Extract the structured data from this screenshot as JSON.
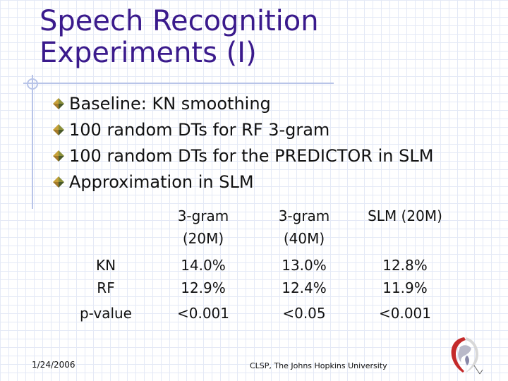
{
  "slide": {
    "title_line1": "Speech Recognition",
    "title_line2": "Experiments (I)",
    "bullets": [
      "Baseline: KN smoothing",
      "100 random DTs for RF 3-gram",
      "100 random DTs for the PREDICTOR in SLM",
      "Approximation in SLM"
    ],
    "table": {
      "headers": [
        [
          "",
          ""
        ],
        [
          "3-gram",
          "(20M)"
        ],
        [
          "3-gram",
          "(40M)"
        ],
        [
          "SLM (20M)",
          ""
        ]
      ],
      "rows": [
        [
          "KN",
          "14.0%",
          "13.0%",
          "12.8%"
        ],
        [
          "RF",
          "12.9%",
          "12.4%",
          "11.9%"
        ],
        [
          "p-value",
          "<0.001",
          "<0.05",
          "<0.001"
        ]
      ]
    },
    "footer": {
      "date": "1/24/2006",
      "org": "CLSP, The Johns Hopkins University"
    },
    "colors": {
      "title": "#3a1a8c",
      "bullet_top": "#8a8f3a",
      "bullet_left": "#c7a13a",
      "bullet_right": "#4a5a2a",
      "rule": "#b8c4e8"
    },
    "icons": {
      "bullet": "diamond-bullet-icon",
      "logo": "university-logo-icon"
    }
  }
}
